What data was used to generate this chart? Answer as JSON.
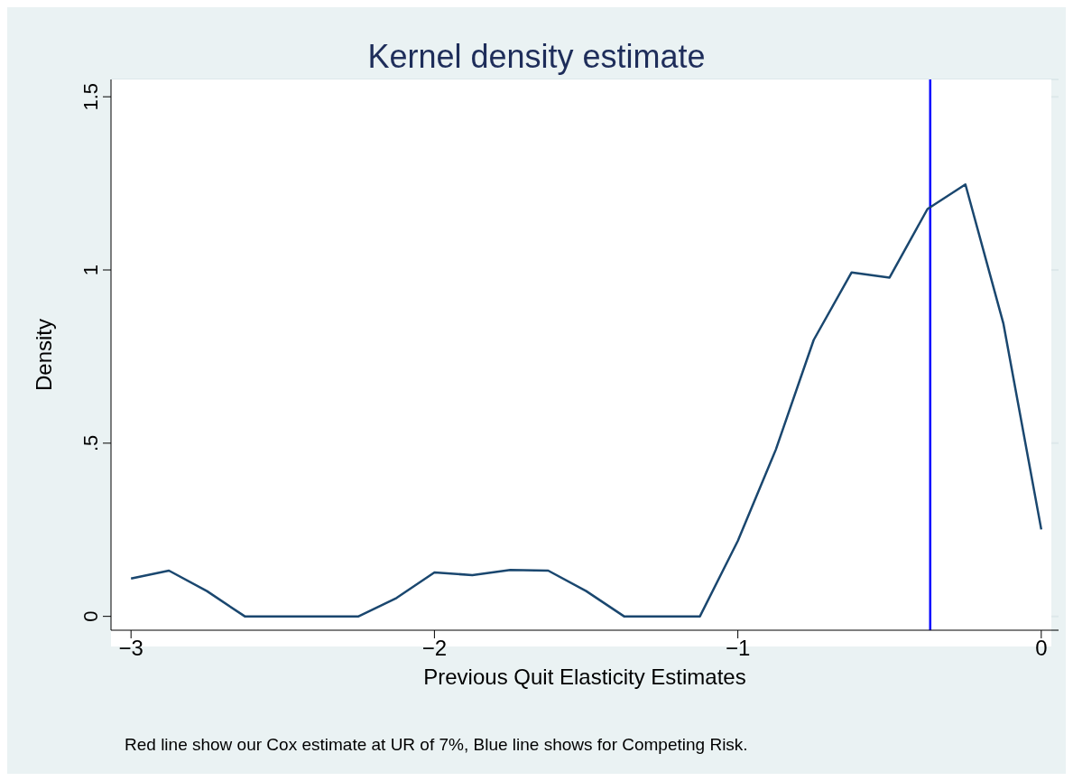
{
  "chart_data": {
    "type": "line",
    "title": "Kernel density estimate",
    "xlabel": "Previous Quit Elasticity Estimates",
    "ylabel": "Density",
    "annotations": [
      "Red line show our Cox estimate at UR of 7%, Blue line shows for Competing Risk."
    ],
    "x": [
      -3,
      -2.875,
      -2.75,
      -2.625,
      -2.5,
      -2.375,
      -2.25,
      -2.125,
      -2,
      -1.875,
      -1.75,
      -1.625,
      -1.5,
      -1.375,
      -1.25,
      -1.125,
      -1,
      -0.875,
      -0.75,
      -0.625,
      -0.5,
      -0.375,
      -0.25,
      -0.125,
      0
    ],
    "series": [
      {
        "color": "#1a476f",
        "values": [
          0.109,
          0.132,
          0.073,
          0,
          0,
          0,
          0,
          0.053,
          0.127,
          0.119,
          0.134,
          0.132,
          0.073,
          0,
          0,
          0,
          0.218,
          0.481,
          0.798,
          0.993,
          0.978,
          1.176,
          1.247,
          0.846,
          0.251
        ]
      }
    ],
    "xlim": [
      -3.066,
      0.057
    ],
    "ylim": [
      -0.04,
      1.55
    ],
    "xticks": [
      {
        "value": -3,
        "label": "−3"
      },
      {
        "value": -2,
        "label": "−2"
      },
      {
        "value": -1,
        "label": "−1"
      },
      0
    ],
    "yticks": [
      0,
      {
        "value": 0.5,
        "label": ".5"
      },
      1,
      1.5
    ],
    "ref_lines": [
      {
        "axis": "x",
        "value": -0.366,
        "color": "#0000ff"
      }
    ],
    "grid": "y",
    "marker": "none",
    "line_style": "solid"
  }
}
